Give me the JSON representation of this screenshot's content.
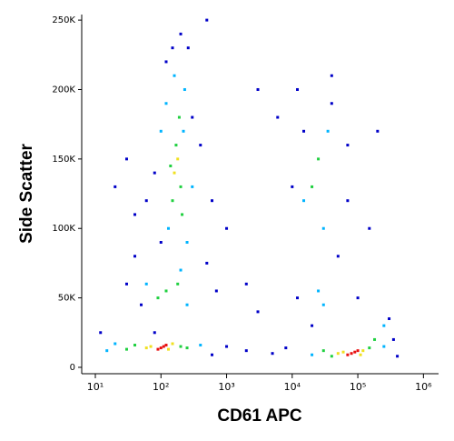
{
  "chart_data": {
    "type": "scatter",
    "x_label": "CD61 APC",
    "y_label": "Side Scatter",
    "x_log": true,
    "xlim": [
      6.2,
      1700000
    ],
    "xticks": [
      {
        "value": 10,
        "label": "10¹"
      },
      {
        "value": 100,
        "label": "10²"
      },
      {
        "value": 1000,
        "label": "10³"
      },
      {
        "value": 10000,
        "label": "10⁴"
      },
      {
        "value": 100000,
        "label": "10⁵"
      },
      {
        "value": 1000000,
        "label": "10⁶"
      }
    ],
    "ylim": [
      -4600,
      254000
    ],
    "yticks": [
      0,
      {
        "value": 50000,
        "label": "50K"
      },
      {
        "value": 100000,
        "label": "100K"
      },
      {
        "value": 150000,
        "label": "150K"
      },
      {
        "value": 200000,
        "label": "200K"
      },
      {
        "value": 250000,
        "label": "250K"
      }
    ],
    "series": [
      {
        "color": "#0000c8",
        "x": [
          200,
          260,
          150,
          120,
          300,
          80,
          60,
          40,
          30,
          20,
          400,
          600,
          1000,
          500,
          700,
          50,
          30,
          40,
          2000,
          1000,
          2000,
          5000,
          8000,
          600,
          12,
          10000,
          40000,
          40000,
          15000,
          50000,
          70000,
          100000,
          12000,
          20000,
          300000,
          400000,
          350000,
          150000,
          6000,
          3000,
          100,
          500,
          80,
          3000,
          200000,
          70000,
          12000
        ],
        "values": [
          240000,
          230000,
          230000,
          220000,
          180000,
          140000,
          120000,
          110000,
          150000,
          130000,
          160000,
          120000,
          100000,
          75000,
          55000,
          45000,
          60000,
          80000,
          60000,
          15000,
          12000,
          10000,
          14000,
          9000,
          25000,
          130000,
          190000,
          210000,
          170000,
          80000,
          120000,
          50000,
          50000,
          30000,
          35000,
          8000,
          20000,
          100000,
          180000,
          200000,
          90000,
          250000,
          25000,
          40000,
          170000,
          160000,
          200000
        ]
      },
      {
        "color": "#00b4ff",
        "x": [
          230,
          160,
          130,
          250,
          100,
          220,
          60,
          250,
          200,
          20,
          15,
          400,
          20000,
          250000,
          250000,
          15000,
          35000,
          30000,
          25000,
          30000,
          300,
          120
        ],
        "values": [
          200000,
          210000,
          100000,
          90000,
          170000,
          170000,
          60000,
          45000,
          70000,
          17000,
          12000,
          16000,
          9000,
          15000,
          30000,
          120000,
          170000,
          100000,
          55000,
          45000,
          130000,
          190000
        ]
      },
      {
        "color": "#20d040",
        "x": [
          200,
          170,
          150,
          190,
          210,
          140,
          40,
          200,
          30,
          250,
          120,
          180,
          90,
          40000,
          150000,
          30000,
          180000,
          20000,
          25000
        ],
        "values": [
          130000,
          160000,
          120000,
          180000,
          110000,
          145000,
          16000,
          15000,
          13000,
          14000,
          55000,
          60000,
          50000,
          8000,
          14000,
          12000,
          20000,
          130000,
          150000
        ]
      },
      {
        "color": "#f0e020",
        "x": [
          70,
          130,
          150,
          60,
          160,
          180,
          60000,
          110000,
          120000,
          50000
        ],
        "values": [
          15000,
          13000,
          17000,
          14000,
          140000,
          150000,
          11000,
          9000,
          12000,
          10000
        ]
      },
      {
        "color": "#e81010",
        "x": [
          100,
          110,
          90,
          120,
          80000,
          90000,
          70000,
          100000
        ],
        "values": [
          14000,
          15000,
          13000,
          16000,
          10000,
          11000,
          9000,
          12000
        ]
      }
    ]
  }
}
